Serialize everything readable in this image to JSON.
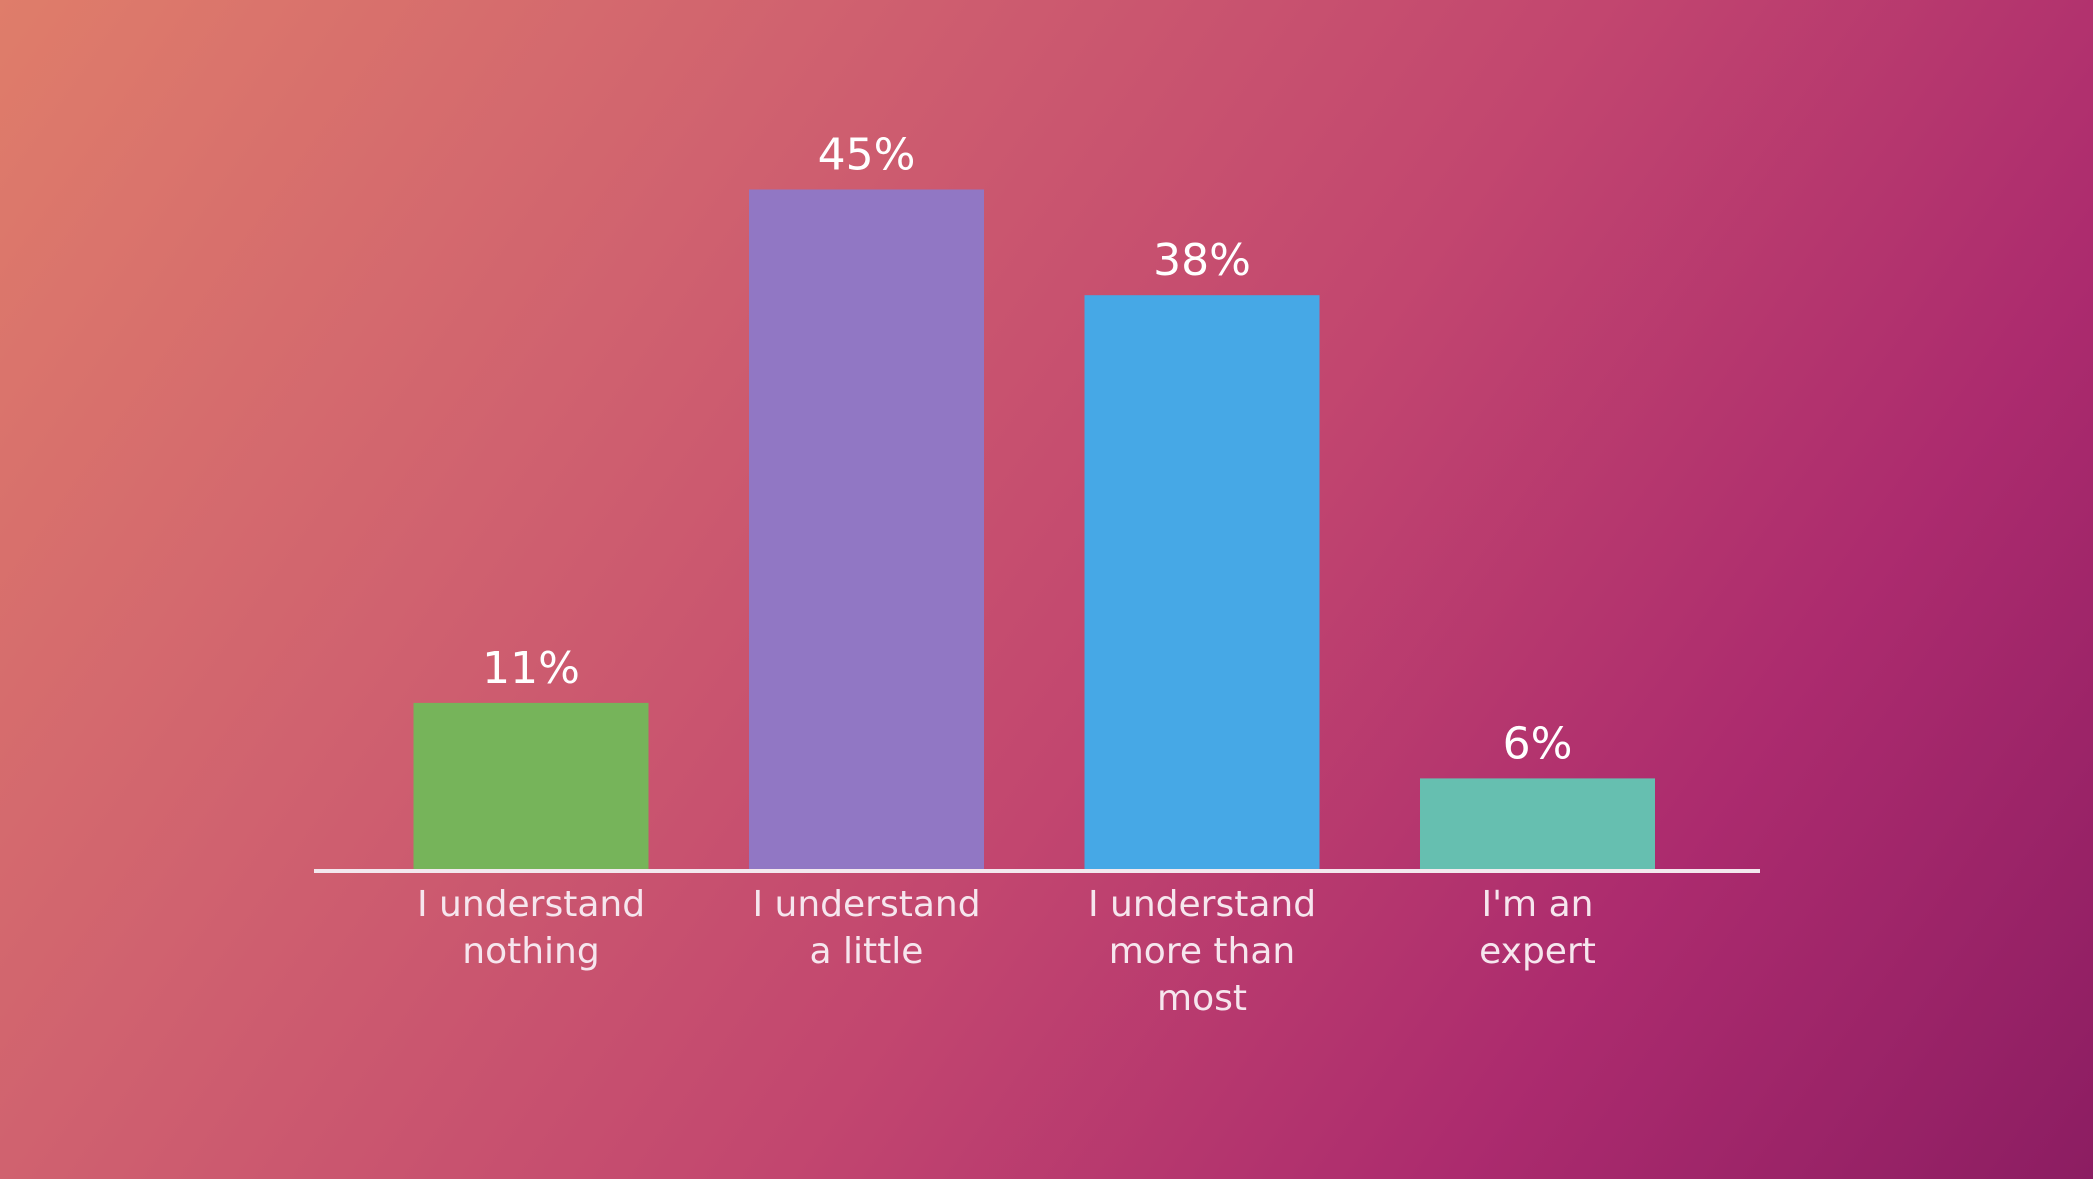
{
  "chart_data": {
    "type": "bar",
    "categories": [
      [
        "I understand",
        "nothing"
      ],
      [
        "I understand",
        "a little"
      ],
      [
        "I understand",
        "more than",
        "most"
      ],
      [
        "I'm an",
        "expert"
      ]
    ],
    "values": [
      11,
      45,
      38,
      6
    ],
    "value_labels": [
      "11%",
      "45%",
      "38%",
      "6%"
    ],
    "colors": [
      "#76b45a",
      "#9177c4",
      "#46a8e6",
      "#66bfb0"
    ]
  }
}
